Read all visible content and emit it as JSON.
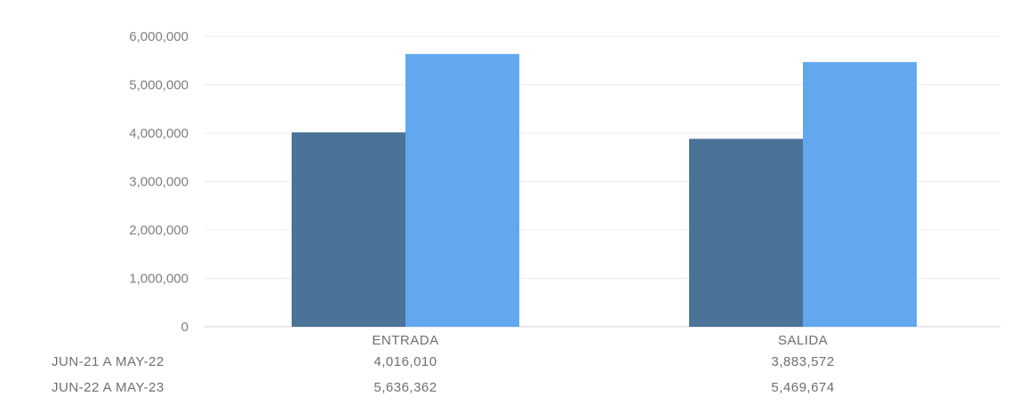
{
  "chart_data": {
    "type": "bar",
    "categories": [
      "ENTRADA",
      "SALIDA"
    ],
    "series": [
      {
        "name": "JUN-21 A MAY-22",
        "values": [
          4016010,
          3883572
        ],
        "color": "#4a7397"
      },
      {
        "name": "JUN-22 A MAY-23",
        "values": [
          5636362,
          5469674
        ],
        "color": "#62a8ef"
      }
    ],
    "value_labels": [
      [
        "4,016,010",
        "3,883,572"
      ],
      [
        "5,636,362",
        "5,469,674"
      ]
    ],
    "yticks": [
      0,
      1000000,
      2000000,
      3000000,
      4000000,
      5000000,
      6000000
    ],
    "ytick_labels": [
      "0",
      "1,000,000",
      "2,000,000",
      "3,000,000",
      "4,000,000",
      "5,000,000",
      "6,000,000"
    ],
    "ylim": [
      0,
      6000000
    ],
    "grid": true,
    "legend": "data table below chart",
    "title": "",
    "xlabel": "",
    "ylabel": ""
  }
}
